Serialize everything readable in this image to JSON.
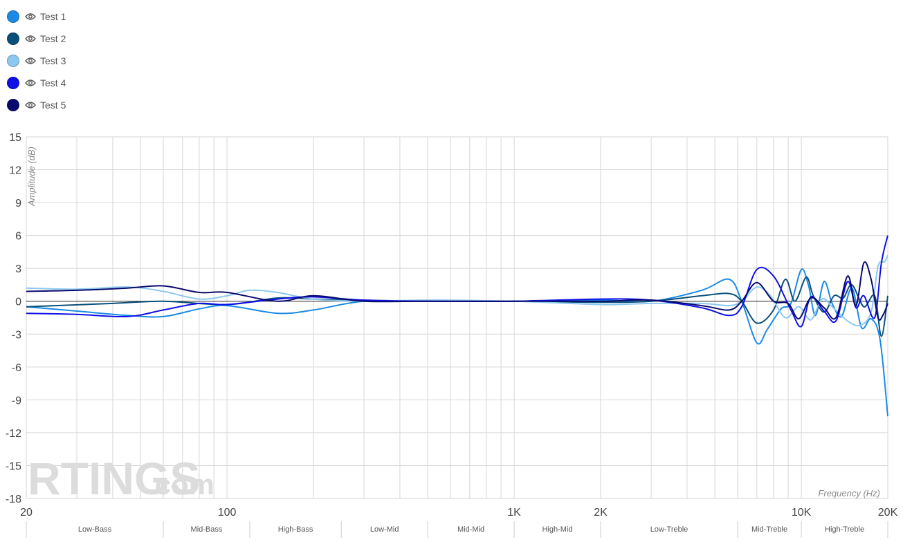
{
  "legend": [
    {
      "label": "Test 1",
      "color": "#1a8ae6",
      "icon": "eye-icon"
    },
    {
      "label": "Test 2",
      "color": "#0a4f7a",
      "icon": "eye-icon"
    },
    {
      "label": "Test 3",
      "color": "#8cc8f0",
      "icon": "eye-icon"
    },
    {
      "label": "Test 4",
      "color": "#1010e6",
      "icon": "eye-icon"
    },
    {
      "label": "Test 5",
      "color": "#0a0a6e",
      "icon": "eye-icon"
    }
  ],
  "watermark": {
    "main": "RTINGS",
    "suffix": ".com"
  },
  "chart_data": {
    "type": "line",
    "title": "",
    "xlabel": "Frequency (Hz)",
    "ylabel": "Amplitude (dB)",
    "xscale": "log",
    "xlim": [
      20,
      20000
    ],
    "ylim": [
      -18,
      15
    ],
    "grid": true,
    "legend_placement": "top-left",
    "x_ticks": [
      {
        "value": 20,
        "label": "20"
      },
      {
        "value": 100,
        "label": "100"
      },
      {
        "value": 1000,
        "label": "1K"
      },
      {
        "value": 2000,
        "label": "2K"
      },
      {
        "value": 10000,
        "label": "10K"
      },
      {
        "value": 20000,
        "label": "20K"
      }
    ],
    "y_ticks": [
      15,
      12,
      9,
      6,
      3,
      0,
      -3,
      -6,
      -9,
      -12,
      -15,
      -18
    ],
    "bands": [
      {
        "label": "Low-Bass",
        "from": 20,
        "to": 60
      },
      {
        "label": "Mid-Bass",
        "from": 60,
        "to": 120
      },
      {
        "label": "High-Bass",
        "from": 120,
        "to": 250
      },
      {
        "label": "Low-Mid",
        "from": 250,
        "to": 500
      },
      {
        "label": "Mid-Mid",
        "from": 500,
        "to": 1000
      },
      {
        "label": "High-Mid",
        "from": 1000,
        "to": 2000
      },
      {
        "label": "Low-Treble",
        "from": 2000,
        "to": 6000
      },
      {
        "label": "Mid-Treble",
        "from": 6000,
        "to": 10000
      },
      {
        "label": "High-Treble",
        "from": 10000,
        "to": 20000
      }
    ],
    "series": [
      {
        "name": "Test 1",
        "color": "#1a8ae6",
        "points": [
          [
            20,
            -0.5
          ],
          [
            30,
            -0.9
          ],
          [
            45,
            -1.3
          ],
          [
            60,
            -1.4
          ],
          [
            80,
            -0.7
          ],
          [
            100,
            -0.4
          ],
          [
            150,
            -1.1
          ],
          [
            200,
            -0.8
          ],
          [
            300,
            0.0
          ],
          [
            500,
            0.0
          ],
          [
            1000,
            0.0
          ],
          [
            2000,
            0.1
          ],
          [
            3000,
            0.0
          ],
          [
            4500,
            1.0
          ],
          [
            5600,
            2.0
          ],
          [
            6200,
            0.0
          ],
          [
            7000,
            -3.8
          ],
          [
            7600,
            -2.6
          ],
          [
            8500,
            -0.7
          ],
          [
            9200,
            -0.2
          ],
          [
            10000,
            2.9
          ],
          [
            10600,
            1.4
          ],
          [
            11200,
            -1.3
          ],
          [
            12000,
            1.8
          ],
          [
            12800,
            -0.2
          ],
          [
            13800,
            -1.4
          ],
          [
            15000,
            1.2
          ],
          [
            16200,
            -2.4
          ],
          [
            17500,
            -1.6
          ],
          [
            18800,
            -3.5
          ],
          [
            20000,
            -10.5
          ]
        ]
      },
      {
        "name": "Test 2",
        "color": "#0a4f7a",
        "points": [
          [
            20,
            -0.5
          ],
          [
            40,
            -0.2
          ],
          [
            60,
            0.0
          ],
          [
            100,
            -0.3
          ],
          [
            150,
            0.3
          ],
          [
            200,
            0.2
          ],
          [
            300,
            0.1
          ],
          [
            500,
            0.0
          ],
          [
            1000,
            0.0
          ],
          [
            2000,
            -0.1
          ],
          [
            3000,
            0.0
          ],
          [
            4500,
            0.5
          ],
          [
            5600,
            0.7
          ],
          [
            6200,
            0.0
          ],
          [
            7000,
            -2.0
          ],
          [
            8000,
            -0.8
          ],
          [
            8800,
            2.0
          ],
          [
            9500,
            0.0
          ],
          [
            10400,
            2.2
          ],
          [
            11000,
            0.5
          ],
          [
            12000,
            -1.0
          ],
          [
            13000,
            0.5
          ],
          [
            14000,
            0.3
          ],
          [
            15000,
            1.5
          ],
          [
            16500,
            -0.5
          ],
          [
            18000,
            0.5
          ],
          [
            19000,
            -3.2
          ],
          [
            20000,
            0.5
          ]
        ]
      },
      {
        "name": "Test 3",
        "color": "#8cc8f0",
        "points": [
          [
            20,
            1.2
          ],
          [
            30,
            1.1
          ],
          [
            45,
            1.3
          ],
          [
            60,
            0.9
          ],
          [
            80,
            0.2
          ],
          [
            100,
            0.5
          ],
          [
            120,
            1.0
          ],
          [
            150,
            0.8
          ],
          [
            200,
            0.2
          ],
          [
            300,
            0.0
          ],
          [
            500,
            0.1
          ],
          [
            1000,
            0.0
          ],
          [
            2000,
            -0.3
          ],
          [
            3000,
            -0.2
          ],
          [
            4500,
            -0.2
          ],
          [
            5600,
            -0.4
          ],
          [
            6200,
            0.0
          ],
          [
            7000,
            1.3
          ],
          [
            7800,
            0.5
          ],
          [
            8800,
            -1.5
          ],
          [
            9800,
            -0.5
          ],
          [
            10800,
            -1.7
          ],
          [
            11800,
            0.2
          ],
          [
            12800,
            -0.5
          ],
          [
            14500,
            -1.8
          ],
          [
            16000,
            -2.2
          ],
          [
            17500,
            -1.0
          ],
          [
            18500,
            3.2
          ],
          [
            19500,
            3.6
          ],
          [
            20000,
            4.2
          ]
        ]
      },
      {
        "name": "Test 4",
        "color": "#1010e6",
        "points": [
          [
            20,
            -1.1
          ],
          [
            30,
            -1.2
          ],
          [
            45,
            -1.4
          ],
          [
            60,
            -0.8
          ],
          [
            80,
            -0.2
          ],
          [
            100,
            -0.3
          ],
          [
            150,
            0.2
          ],
          [
            200,
            0.4
          ],
          [
            300,
            0.1
          ],
          [
            500,
            0.0
          ],
          [
            1000,
            0.0
          ],
          [
            2000,
            0.2
          ],
          [
            3000,
            0.1
          ],
          [
            4500,
            -0.6
          ],
          [
            5600,
            -1.3
          ],
          [
            6200,
            -0.5
          ],
          [
            7000,
            2.9
          ],
          [
            8000,
            2.3
          ],
          [
            9200,
            -0.8
          ],
          [
            10000,
            -2.3
          ],
          [
            10800,
            0.4
          ],
          [
            12000,
            -0.9
          ],
          [
            13200,
            -1.8
          ],
          [
            14500,
            1.8
          ],
          [
            15500,
            -0.6
          ],
          [
            16500,
            0.5
          ],
          [
            18000,
            -1.5
          ],
          [
            19000,
            3.5
          ],
          [
            20000,
            6.0
          ]
        ]
      },
      {
        "name": "Test 5",
        "color": "#0a0a6e",
        "points": [
          [
            20,
            0.9
          ],
          [
            30,
            1.0
          ],
          [
            45,
            1.2
          ],
          [
            60,
            1.4
          ],
          [
            80,
            0.8
          ],
          [
            100,
            0.8
          ],
          [
            150,
            0.0
          ],
          [
            200,
            0.5
          ],
          [
            300,
            0.0
          ],
          [
            500,
            0.0
          ],
          [
            1000,
            0.0
          ],
          [
            2000,
            0.0
          ],
          [
            3000,
            0.1
          ],
          [
            4500,
            -0.4
          ],
          [
            5600,
            -0.8
          ],
          [
            6200,
            0.0
          ],
          [
            7000,
            1.7
          ],
          [
            8000,
            0.0
          ],
          [
            9000,
            -0.2
          ],
          [
            9800,
            -1.6
          ],
          [
            10800,
            0.3
          ],
          [
            12000,
            -0.6
          ],
          [
            13200,
            -1.5
          ],
          [
            14500,
            2.3
          ],
          [
            15500,
            -0.4
          ],
          [
            16500,
            3.5
          ],
          [
            17500,
            2.0
          ],
          [
            18500,
            -1.5
          ],
          [
            19300,
            -1.2
          ],
          [
            20000,
            -0.2
          ]
        ]
      }
    ]
  }
}
